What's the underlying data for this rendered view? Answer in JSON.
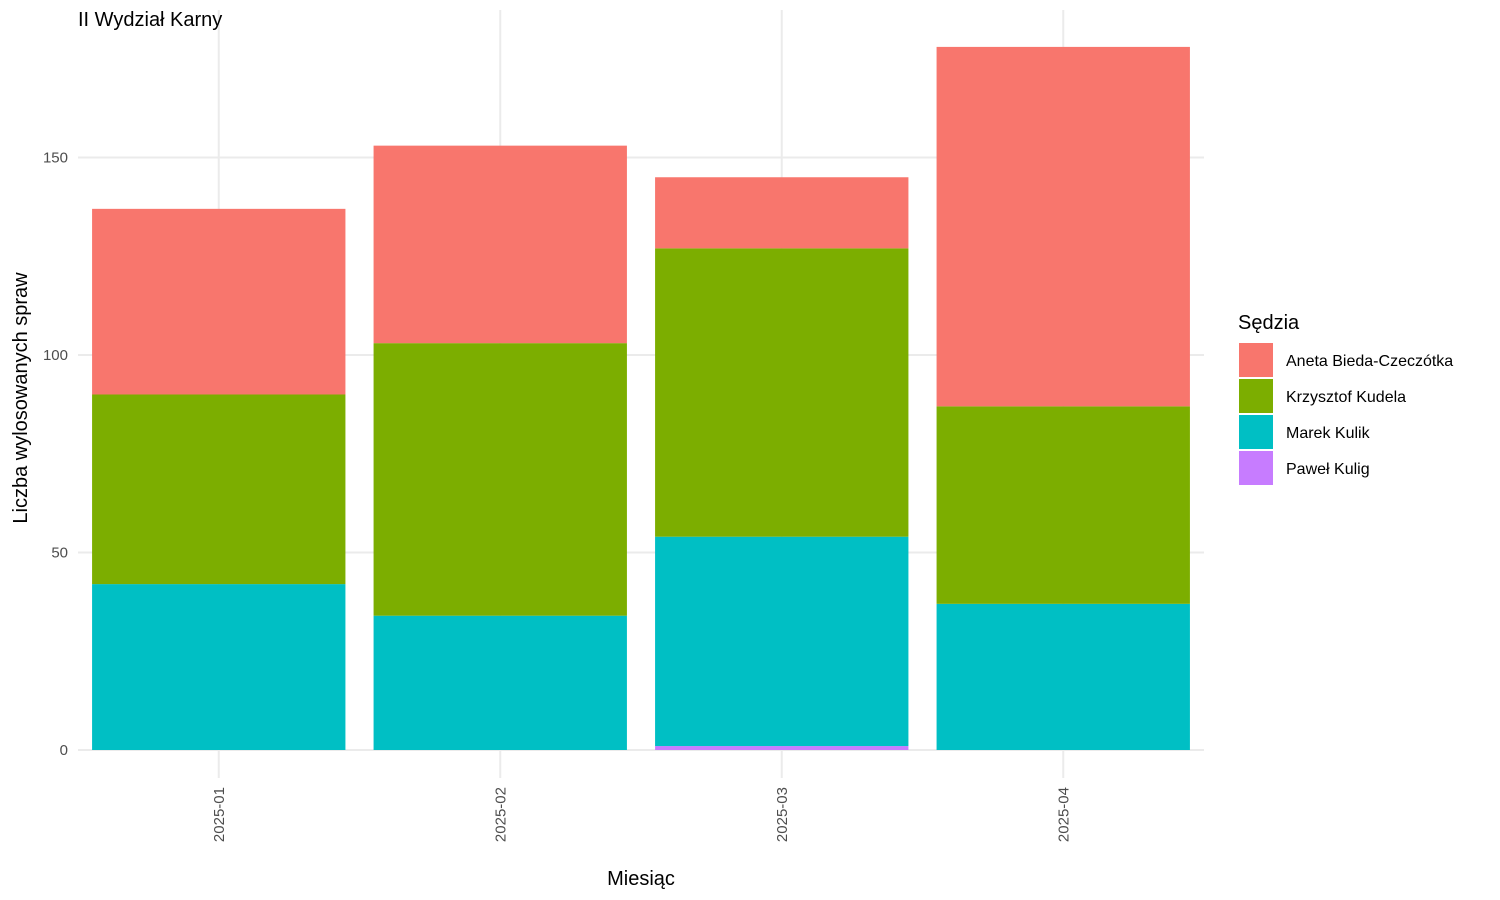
{
  "chart_data": {
    "type": "bar",
    "stacked": true,
    "title": "II Wydział Karny",
    "xlabel": "Miesiąc",
    "ylabel": "Liczba wylosowanych spraw",
    "categories": [
      "2025-01",
      "2025-02",
      "2025-03",
      "2025-04"
    ],
    "ylim": [
      0,
      185
    ],
    "yticks": [
      0,
      50,
      100,
      150
    ],
    "grid": true,
    "legend": {
      "title": "Sędzia",
      "position": "right"
    },
    "series": [
      {
        "name": "Aneta Bieda-Czeczótka",
        "color": "#F8766D",
        "values": [
          47,
          50,
          18,
          91
        ]
      },
      {
        "name": "Krzysztof Kudela",
        "color": "#7CAE00",
        "values": [
          48,
          69,
          73,
          50
        ]
      },
      {
        "name": "Marek Kulik",
        "color": "#00BFC4",
        "values": [
          42,
          34,
          53,
          37
        ]
      },
      {
        "name": "Paweł Kulig",
        "color": "#C77CFF",
        "values": [
          0,
          0,
          1,
          0
        ]
      }
    ]
  }
}
